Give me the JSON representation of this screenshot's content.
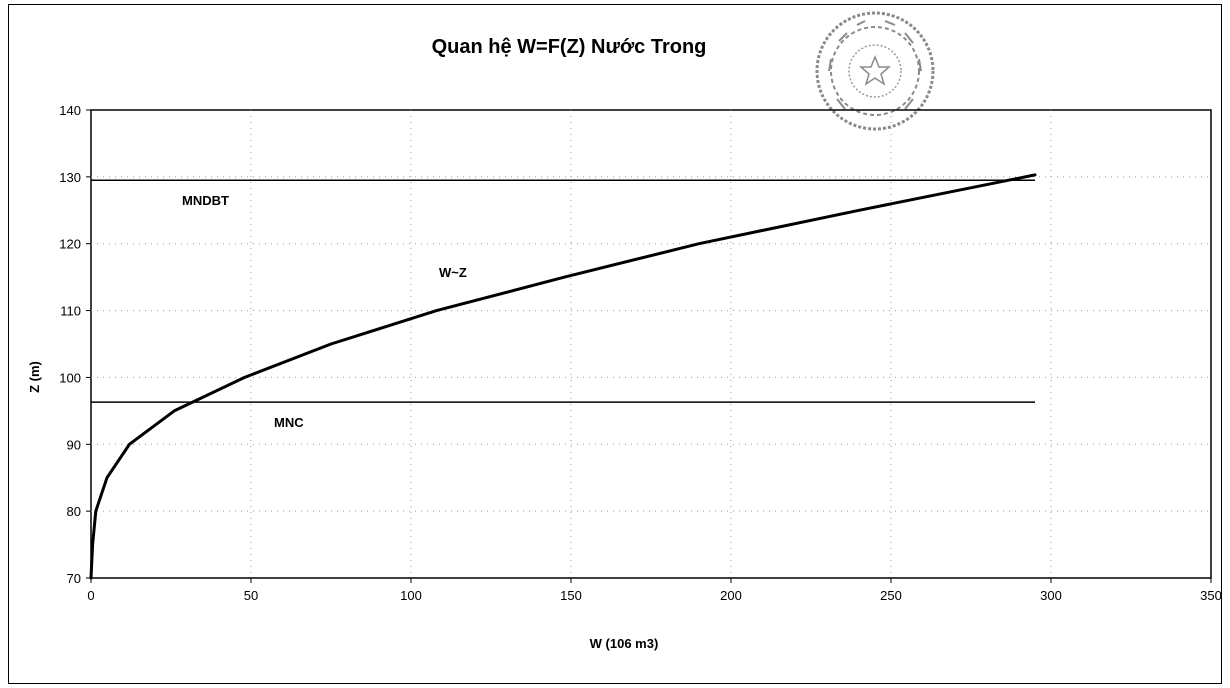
{
  "chart_data": {
    "type": "line",
    "title": "Quan hệ W=F(Z) Nước Trong",
    "xlabel": "W (106 m3)",
    "ylabel": "Z (m)",
    "xlim": [
      0,
      350
    ],
    "ylim": [
      70,
      140
    ],
    "x_ticks": [
      "0",
      "50",
      "100",
      "150",
      "200",
      "250",
      "300",
      "350"
    ],
    "y_ticks": [
      "70",
      "80",
      "90",
      "100",
      "110",
      "120",
      "130",
      "140"
    ],
    "grid": "dotted",
    "series": [
      {
        "name": "W~Z",
        "x": [
          0,
          0.5,
          1.5,
          5,
          12,
          26,
          48,
          75,
          108,
          148,
          190,
          240,
          295
        ],
        "y": [
          70,
          75,
          80,
          85,
          90,
          95,
          100,
          105,
          110,
          115,
          120,
          125,
          130.3
        ]
      }
    ],
    "reference_lines": [
      {
        "label": "MNDBT",
        "y": 129.5,
        "x_start": 0,
        "x_end": 295
      },
      {
        "label": "MNC",
        "y": 96.3,
        "x_start": 0,
        "x_end": 295
      }
    ],
    "annotations": [
      "MNDBT",
      "MNC",
      "W~Z"
    ],
    "colors": {
      "line": "#000000",
      "grid": "#9a9a9a",
      "seal": "#8a8a8a"
    }
  }
}
